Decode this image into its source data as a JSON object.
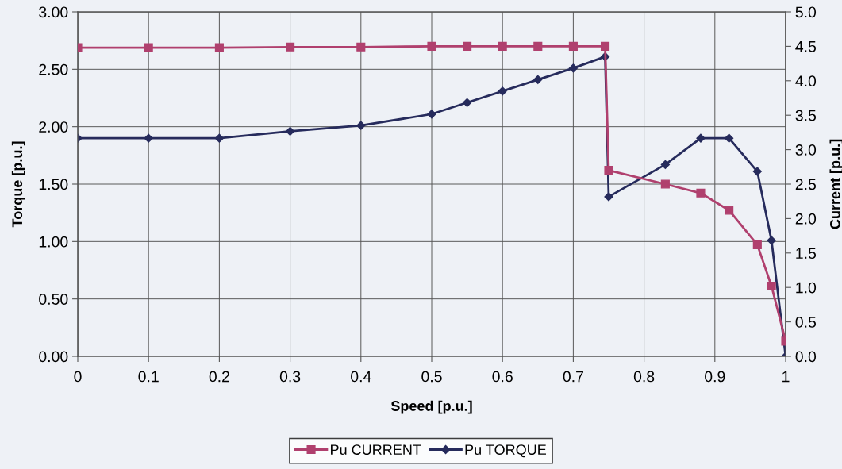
{
  "chart_data": {
    "type": "line",
    "xlabel": "Speed [p.u.]",
    "ylabel": "Torque [p.u.]",
    "y2label": "Current [p.u.]",
    "xlim": [
      0,
      1
    ],
    "xticks": [
      0,
      0.1,
      0.2,
      0.3,
      0.4,
      0.5,
      0.6,
      0.7,
      0.8,
      0.9,
      1
    ],
    "ylim": [
      0,
      3
    ],
    "yticks": [
      {
        "value": 0,
        "label": "0.00"
      },
      {
        "value": 0.5,
        "label": "0.50"
      },
      {
        "value": 1,
        "label": "1.00"
      },
      {
        "value": 1.5,
        "label": "1.50"
      },
      {
        "value": 2,
        "label": "2.00"
      },
      {
        "value": 2.5,
        "label": "2.50"
      },
      {
        "value": 3,
        "label": "3.00"
      }
    ],
    "y2lim": [
      0,
      5
    ],
    "y2ticks": [
      {
        "value": 0,
        "label": "0.0"
      },
      {
        "value": 0.5,
        "label": "0.5"
      },
      {
        "value": 1,
        "label": "1.0"
      },
      {
        "value": 1.5,
        "label": "1.5"
      },
      {
        "value": 2,
        "label": "2.0"
      },
      {
        "value": 2.5,
        "label": "2.5"
      },
      {
        "value": 3,
        "label": "3.0"
      },
      {
        "value": 3.5,
        "label": "3.5"
      },
      {
        "value": 4,
        "label": "4.0"
      },
      {
        "value": 4.5,
        "label": "4.5"
      },
      {
        "value": 5,
        "label": "5.0"
      }
    ],
    "grid": true,
    "legend": "bottom",
    "series": [
      {
        "name": "Pu CURRENT",
        "color": "#b0406e",
        "axis": "y2",
        "marker": "square",
        "x": [
          0,
          0.1,
          0.2,
          0.3,
          0.4,
          0.5,
          0.55,
          0.6,
          0.65,
          0.7,
          0.745,
          0.75,
          0.83,
          0.88,
          0.92,
          0.96,
          0.98,
          1.0
        ],
        "values": [
          4.48,
          4.48,
          4.48,
          4.49,
          4.49,
          4.5,
          4.5,
          4.5,
          4.5,
          4.5,
          4.5,
          2.7,
          2.5,
          2.37,
          2.12,
          1.62,
          1.02,
          0.22
        ]
      },
      {
        "name": "Pu TORQUE",
        "color": "#262b5c",
        "marker": "diamond",
        "x": [
          0,
          0.1,
          0.2,
          0.3,
          0.4,
          0.5,
          0.55,
          0.6,
          0.65,
          0.7,
          0.745,
          0.75,
          0.83,
          0.88,
          0.92,
          0.96,
          0.98,
          1.0
        ],
        "values": [
          1.9,
          1.9,
          1.9,
          1.96,
          2.01,
          2.11,
          2.21,
          2.31,
          2.41,
          2.51,
          2.61,
          1.39,
          1.67,
          1.9,
          1.9,
          1.61,
          1.01,
          0.0
        ]
      }
    ]
  }
}
